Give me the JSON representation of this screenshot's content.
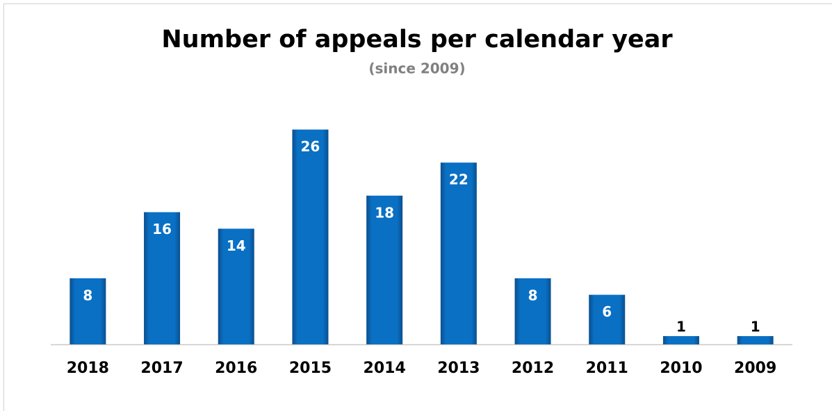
{
  "chart_data": {
    "type": "bar",
    "title": "Number of appeals per calendar year",
    "subtitle": "(since 2009)",
    "categories": [
      "2018",
      "2017",
      "2016",
      "2015",
      "2014",
      "2013",
      "2012",
      "2011",
      "2010",
      "2009"
    ],
    "values": [
      8,
      16,
      14,
      26,
      18,
      22,
      8,
      6,
      1,
      1
    ],
    "color": "#0a70c4",
    "ylim": [
      0,
      30
    ]
  }
}
